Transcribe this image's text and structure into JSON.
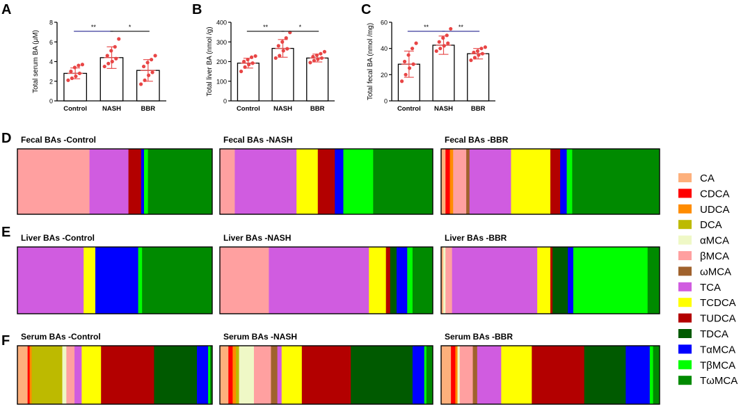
{
  "panel_letters": [
    "A",
    "B",
    "C",
    "D",
    "E",
    "F"
  ],
  "legend": {
    "items": [
      {
        "label": "CA",
        "color": "#FDB07C"
      },
      {
        "label": "CDCA",
        "color": "#FF0000"
      },
      {
        "label": "UDCA",
        "color": "#FF8C00"
      },
      {
        "label": "DCA",
        "color": "#BDBA00"
      },
      {
        "label": "αMCA",
        "color": "#EFF8C6"
      },
      {
        "label": "βMCA",
        "color": "#FFA0A0"
      },
      {
        "label": "ωMCA",
        "color": "#A0622D"
      },
      {
        "label": "TCA",
        "color": "#D05CE0"
      },
      {
        "label": "TCDCA",
        "color": "#FFFF00"
      },
      {
        "label": "TUDCA",
        "color": "#B30000"
      },
      {
        "label": "TDCA",
        "color": "#005A00"
      },
      {
        "label": "TαMCA",
        "color": "#0000FF"
      },
      {
        "label": "TβMCA",
        "color": "#00FF00"
      },
      {
        "label": "TωMCA",
        "color": "#008A00"
      }
    ]
  },
  "chart_data": [
    {
      "type": "bar",
      "panel": "A",
      "title": "",
      "categories": [
        "Control",
        "NASH",
        "BBR"
      ],
      "values": [
        2.8,
        4.4,
        3.1
      ],
      "errors": [
        0.55,
        1.1,
        1.1
      ],
      "points": [
        [
          2.1,
          2.3,
          2.5,
          2.8,
          3.0,
          3.4,
          3.6,
          3.7
        ],
        [
          3.5,
          3.8,
          4.0,
          4.3,
          4.6,
          5.1,
          5.5,
          6.3
        ],
        [
          1.7,
          2.1,
          2.6,
          2.9,
          3.5,
          3.9,
          4.2,
          4.6
        ]
      ],
      "ylabel": "Total serum BA (μM)",
      "ylim": [
        0,
        8
      ],
      "yticks": [
        0,
        2,
        4,
        6,
        8
      ],
      "ytick_labels": [
        "0",
        "2",
        "4",
        "6",
        "8"
      ],
      "significance": [
        {
          "from": 0,
          "to": 1,
          "label": "**",
          "color": "#3A3A9A"
        },
        {
          "from": 1,
          "to": 2,
          "label": "*",
          "color": "#222222"
        }
      ]
    },
    {
      "type": "bar",
      "panel": "B",
      "title": "",
      "categories": [
        "Control",
        "NASH",
        "BBR"
      ],
      "values": [
        192,
        267,
        218
      ],
      "errors": [
        25,
        45,
        20
      ],
      "points": [
        [
          150,
          172,
          185,
          192,
          200,
          210,
          222,
          228
        ],
        [
          218,
          230,
          255,
          265,
          280,
          300,
          320,
          348
        ],
        [
          195,
          205,
          212,
          218,
          225,
          232,
          240,
          250
        ]
      ],
      "ylabel": "Total liver BA (nmol /g)",
      "ylim": [
        0,
        400
      ],
      "yticks": [
        0,
        100,
        200,
        300,
        400
      ],
      "ytick_labels": [
        "0",
        "100",
        "200",
        "300",
        "400"
      ],
      "significance": [
        {
          "from": 0,
          "to": 1,
          "label": "**",
          "color": "#222222"
        },
        {
          "from": 1,
          "to": 2,
          "label": "*",
          "color": "#222222"
        }
      ]
    },
    {
      "type": "bar",
      "panel": "C",
      "title": "",
      "categories": [
        "Control",
        "NASH",
        "BBR"
      ],
      "values": [
        28,
        42.5,
        36
      ],
      "errors": [
        10,
        7,
        4
      ],
      "points": [
        [
          15,
          20,
          25,
          28,
          30,
          35,
          40,
          44
        ],
        [
          38,
          40,
          42,
          44,
          45,
          48,
          50,
          55
        ],
        [
          31,
          33,
          35,
          36,
          37,
          38,
          40,
          41
        ]
      ],
      "ylabel": "Total fecal BA (nmol /mg)",
      "ylim": [
        0,
        60
      ],
      "yticks": [
        0,
        20,
        40,
        60
      ],
      "ytick_labels": [
        "0",
        "20",
        "40",
        "60"
      ],
      "significance": [
        {
          "from": 0,
          "to": 1,
          "label": "**",
          "color": "#3A3A9A"
        },
        {
          "from": 1,
          "to": 2,
          "label": "**",
          "color": "#3A3A9A"
        }
      ]
    },
    {
      "type": "stacked_bar",
      "panel": "D",
      "composition_note": "segment widths are percent of total bile acids",
      "bars": [
        {
          "title": "Fecal BAs -Control",
          "segments": [
            {
              "name": "βMCA",
              "value": 37
            },
            {
              "name": "TCA",
              "value": 20
            },
            {
              "name": "TUDCA",
              "value": 6.5
            },
            {
              "name": "TαMCA",
              "value": 1.5
            },
            {
              "name": "TβMCA",
              "value": 2
            },
            {
              "name": "TωMCA",
              "value": 33
            }
          ]
        },
        {
          "title": "Fecal BAs -NASH",
          "segments": [
            {
              "name": "βMCA",
              "value": 7
            },
            {
              "name": "TCA",
              "value": 29
            },
            {
              "name": "TCDCA",
              "value": 10
            },
            {
              "name": "TUDCA",
              "value": 8
            },
            {
              "name": "TαMCA",
              "value": 4
            },
            {
              "name": "TβMCA",
              "value": 14
            },
            {
              "name": "TωMCA",
              "value": 28
            }
          ]
        },
        {
          "title": "Fecal BAs -BBR",
          "segments": [
            {
              "name": "CA",
              "value": 2
            },
            {
              "name": "CDCA",
              "value": 2
            },
            {
              "name": "UDCA",
              "value": 1.5
            },
            {
              "name": "βMCA",
              "value": 6
            },
            {
              "name": "ωMCA",
              "value": 1.5
            },
            {
              "name": "TCA",
              "value": 19
            },
            {
              "name": "TCDCA",
              "value": 18
            },
            {
              "name": "TUDCA",
              "value": 4.5
            },
            {
              "name": "TαMCA",
              "value": 3
            },
            {
              "name": "TβMCA",
              "value": 2.5
            },
            {
              "name": "TωMCA",
              "value": 40
            }
          ]
        }
      ]
    },
    {
      "type": "stacked_bar",
      "panel": "E",
      "composition_note": "segment widths are percent of total bile acids",
      "bars": [
        {
          "title": "Liver BAs -Control",
          "segments": [
            {
              "name": "TCA",
              "value": 34
            },
            {
              "name": "TCDCA",
              "value": 6
            },
            {
              "name": "TαMCA",
              "value": 22
            },
            {
              "name": "TβMCA",
              "value": 2
            },
            {
              "name": "TωMCA",
              "value": 36
            }
          ]
        },
        {
          "title": "Liver BAs -NASH",
          "segments": [
            {
              "name": "βMCA",
              "value": 23
            },
            {
              "name": "TCA",
              "value": 47
            },
            {
              "name": "TCDCA",
              "value": 8
            },
            {
              "name": "TUDCA",
              "value": 2
            },
            {
              "name": "TDCA",
              "value": 3
            },
            {
              "name": "TαMCA",
              "value": 5
            },
            {
              "name": "TβMCA",
              "value": 2.5
            },
            {
              "name": "TωMCA",
              "value": 9.5
            }
          ]
        },
        {
          "title": "Liver BAs -BBR",
          "segments": [
            {
              "name": "CA",
              "value": 1
            },
            {
              "name": "αMCA",
              "value": 1
            },
            {
              "name": "βMCA",
              "value": 3
            },
            {
              "name": "TCA",
              "value": 39
            },
            {
              "name": "TCDCA",
              "value": 6
            },
            {
              "name": "TUDCA",
              "value": 1
            },
            {
              "name": "TDCA",
              "value": 7
            },
            {
              "name": "TαMCA",
              "value": 2.5
            },
            {
              "name": "TβMCA",
              "value": 34
            },
            {
              "name": "TωMCA",
              "value": 5.5
            }
          ]
        }
      ]
    },
    {
      "type": "stacked_bar",
      "panel": "F",
      "composition_note": "segment widths are percent of total bile acids",
      "bars": [
        {
          "title": "Serum BAs -Control",
          "segments": [
            {
              "name": "CA",
              "value": 5
            },
            {
              "name": "CDCA",
              "value": 1
            },
            {
              "name": "UDCA",
              "value": 1
            },
            {
              "name": "DCA",
              "value": 15
            },
            {
              "name": "αMCA",
              "value": 2
            },
            {
              "name": "βMCA",
              "value": 4
            },
            {
              "name": "TCA",
              "value": 3.5
            },
            {
              "name": "TCDCA",
              "value": 9.5
            },
            {
              "name": "TUDCA",
              "value": 26
            },
            {
              "name": "TDCA",
              "value": 21
            },
            {
              "name": "TαMCA",
              "value": 5.5
            },
            {
              "name": "TβMCA",
              "value": 1
            },
            {
              "name": "TωMCA",
              "value": 1
            }
          ]
        },
        {
          "title": "Serum BAs -NASH",
          "segments": [
            {
              "name": "CA",
              "value": 4
            },
            {
              "name": "CDCA",
              "value": 2
            },
            {
              "name": "UDCA",
              "value": 1.5
            },
            {
              "name": "DCA",
              "value": 1.5
            },
            {
              "name": "αMCA",
              "value": 7
            },
            {
              "name": "βMCA",
              "value": 8
            },
            {
              "name": "ωMCA",
              "value": 3
            },
            {
              "name": "TCA",
              "value": 2
            },
            {
              "name": "TCDCA",
              "value": 9.5
            },
            {
              "name": "TUDCA",
              "value": 23
            },
            {
              "name": "TDCA",
              "value": 29
            },
            {
              "name": "TαMCA",
              "value": 5.5
            },
            {
              "name": "TβMCA",
              "value": 1
            },
            {
              "name": "TωMCA",
              "value": 3
            }
          ]
        },
        {
          "title": "Serum BAs -BBR",
          "segments": [
            {
              "name": "CA",
              "value": 4.5
            },
            {
              "name": "CDCA",
              "value": 2
            },
            {
              "name": "UDCA",
              "value": 1
            },
            {
              "name": "αMCA",
              "value": 1
            },
            {
              "name": "βMCA",
              "value": 6
            },
            {
              "name": "ωMCA",
              "value": 2
            },
            {
              "name": "TCA",
              "value": 11
            },
            {
              "name": "TCDCA",
              "value": 14
            },
            {
              "name": "TUDCA",
              "value": 24
            },
            {
              "name": "TDCA",
              "value": 19
            },
            {
              "name": "TαMCA",
              "value": 11
            },
            {
              "name": "TβMCA",
              "value": 1.5
            },
            {
              "name": "TωMCA",
              "value": 3
            }
          ]
        }
      ]
    }
  ]
}
